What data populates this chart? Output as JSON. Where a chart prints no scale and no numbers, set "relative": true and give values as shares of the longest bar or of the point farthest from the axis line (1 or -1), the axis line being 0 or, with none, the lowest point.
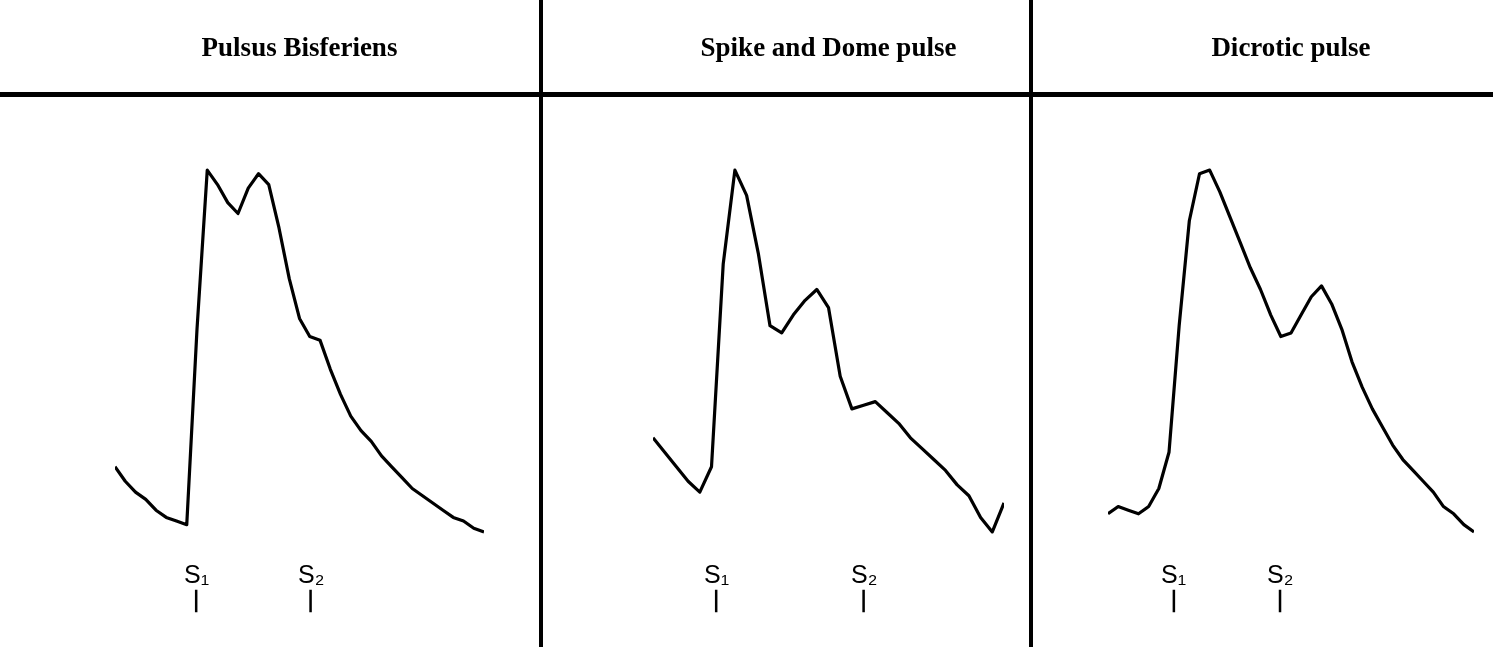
{
  "chart_data": [
    {
      "type": "line",
      "title": "Pulsus Bisferiens",
      "relative": true,
      "categories": [
        null,
        null,
        null,
        null,
        null,
        null,
        null,
        null,
        null,
        null,
        null,
        null,
        null,
        null,
        null,
        null,
        null,
        null,
        null,
        null,
        null,
        null,
        null,
        null,
        null,
        null,
        null,
        null,
        null,
        null,
        null,
        null,
        null,
        null,
        null,
        null,
        null
      ],
      "series": [
        {
          "color": "#000000",
          "values": [
            0.18,
            0.14,
            0.11,
            0.09,
            0.06,
            0.04,
            0.03,
            0.02,
            0.56,
            1.0,
            0.96,
            0.91,
            0.88,
            0.95,
            0.99,
            0.96,
            0.84,
            0.7,
            0.59,
            0.54,
            0.53,
            0.45,
            0.38,
            0.32,
            0.28,
            0.25,
            0.21,
            0.18,
            0.15,
            0.12,
            0.1,
            0.08,
            0.06,
            0.04,
            0.03,
            0.01,
            0
          ]
        }
      ],
      "annotations": [
        "S₁",
        "S₂"
      ]
    },
    {
      "type": "line",
      "title": "Spike and Dome pulse",
      "relative": true,
      "categories": [
        null,
        null,
        null,
        null,
        null,
        null,
        null,
        null,
        null,
        null,
        null,
        null,
        null,
        null,
        null,
        null,
        null,
        null,
        null,
        null,
        null,
        null,
        null,
        null,
        null,
        null,
        null,
        null,
        null,
        null,
        null
      ],
      "series": [
        {
          "color": "#000000",
          "values": [
            0.26,
            0.22,
            0.18,
            0.14,
            0.11,
            0.18,
            0.74,
            1.0,
            0.93,
            0.77,
            0.57,
            0.55,
            0.6,
            0.64,
            0.67,
            0.62,
            0.43,
            0.34,
            0.35,
            0.36,
            0.33,
            0.3,
            0.26,
            0.23,
            0.2,
            0.17,
            0.13,
            0.1,
            0.04,
            0,
            0.08
          ]
        }
      ],
      "annotations": [
        "S₁",
        "S₂"
      ]
    },
    {
      "type": "line",
      "title": "Dicrotic pulse",
      "relative": true,
      "categories": [
        null,
        null,
        null,
        null,
        null,
        null,
        null,
        null,
        null,
        null,
        null,
        null,
        null,
        null,
        null,
        null,
        null,
        null,
        null,
        null,
        null,
        null,
        null,
        null,
        null,
        null,
        null,
        null,
        null,
        null,
        null,
        null,
        null,
        null,
        null,
        null,
        null
      ],
      "series": [
        {
          "color": "#000000",
          "values": [
            0.05,
            0.07,
            0.06,
            0.05,
            0.07,
            0.12,
            0.22,
            0.57,
            0.86,
            0.99,
            1.0,
            0.94,
            0.87,
            0.8,
            0.73,
            0.67,
            0.6,
            0.54,
            0.55,
            0.6,
            0.65,
            0.68,
            0.63,
            0.56,
            0.47,
            0.4,
            0.34,
            0.29,
            0.24,
            0.2,
            0.17,
            0.14,
            0.11,
            0.07,
            0.05,
            0.02,
            0
          ]
        }
      ],
      "annotations": [
        "S₁",
        "S₂"
      ]
    }
  ]
}
